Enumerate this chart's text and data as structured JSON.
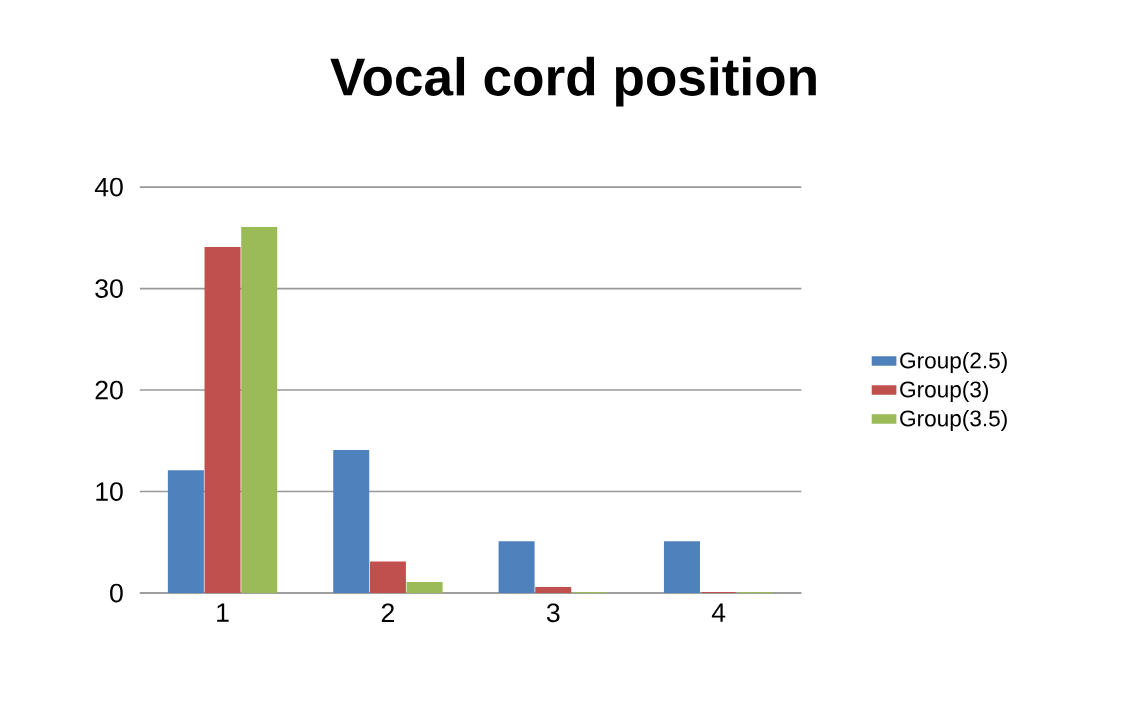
{
  "chart_data": {
    "type": "bar",
    "title": "Vocal cord position",
    "categories": [
      "1",
      "2",
      "3",
      "4"
    ],
    "series": [
      {
        "name": "Group(2.5)",
        "color": "#4f81bd",
        "values": [
          12,
          14,
          5,
          5
        ]
      },
      {
        "name": "Group(3)",
        "color": "#c0504d",
        "values": [
          34,
          3,
          0.5,
          0
        ]
      },
      {
        "name": "Group(3.5)",
        "color": "#9bbb59",
        "values": [
          36,
          1,
          0,
          0
        ]
      }
    ],
    "ylim": [
      0,
      40
    ],
    "yticks": [
      0,
      10,
      20,
      30,
      40
    ],
    "grid": "y",
    "legend": "right"
  }
}
